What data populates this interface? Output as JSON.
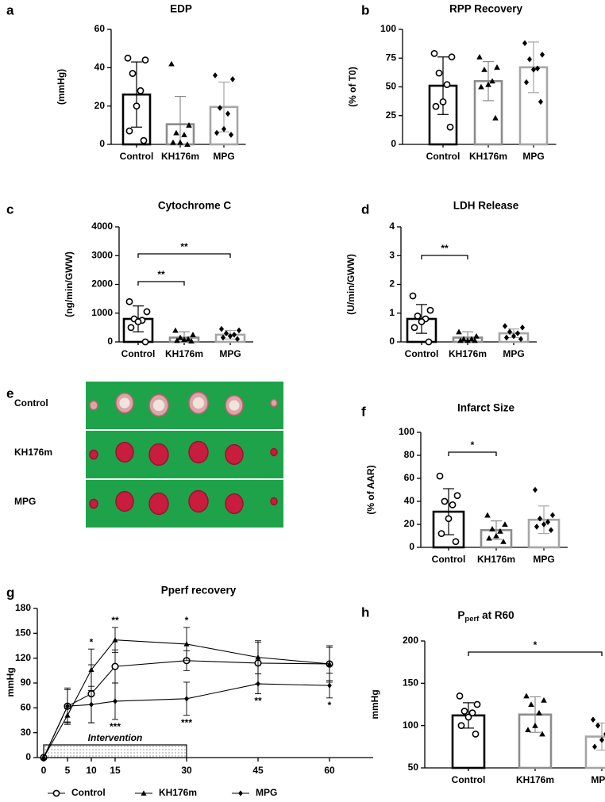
{
  "chart_data": [
    {
      "type": "bar",
      "panel": "a",
      "title": "EDP",
      "ylabel": "(mmHg)",
      "categories": [
        "Control",
        "KH176m",
        "MPG"
      ],
      "values": [
        26,
        10.5,
        19.5
      ],
      "errors": [
        17,
        14.5,
        13
      ],
      "points": [
        [
          45,
          44,
          37,
          28,
          20,
          7,
          2
        ],
        [
          42,
          10,
          6,
          5,
          1,
          1,
          0
        ],
        [
          36,
          34,
          19,
          16,
          8,
          6,
          5
        ]
      ],
      "colors": [
        "#000000",
        "#8c8c8c",
        "#a6a6a6"
      ],
      "markers": [
        "circle",
        "triangle",
        "diamond"
      ],
      "ylim": [
        0,
        60
      ],
      "yticks": [
        0,
        20,
        40,
        60
      ],
      "comparisons": []
    },
    {
      "type": "bar",
      "panel": "b",
      "title": "RPP Recovery",
      "ylabel": "(% of T0)",
      "categories": [
        "Control",
        "KH176m",
        "MPG"
      ],
      "values": [
        51,
        55,
        67
      ],
      "errors": [
        25,
        17,
        22
      ],
      "points": [
        [
          79,
          76,
          62,
          52,
          37,
          33,
          15
        ],
        [
          76,
          67,
          65,
          55,
          52,
          50,
          23
        ],
        [
          88,
          78,
          74,
          66,
          65,
          54,
          37
        ]
      ],
      "colors": [
        "#000000",
        "#8c8c8c",
        "#a6a6a6"
      ],
      "markers": [
        "circle",
        "triangle",
        "diamond"
      ],
      "ylim": [
        0,
        100
      ],
      "yticks": [
        0,
        25,
        50,
        75,
        100
      ],
      "comparisons": []
    },
    {
      "type": "bar",
      "panel": "c",
      "title": "Cytochrome C",
      "ylabel": "(ng/min/GWW)",
      "categories": [
        "Control",
        "KH176m",
        "MPG"
      ],
      "values": [
        800,
        150,
        250
      ],
      "errors": [
        450,
        200,
        150
      ],
      "points": [
        [
          1400,
          1050,
          800,
          750,
          700,
          500,
          0
        ],
        [
          400,
          250,
          150,
          100,
          80,
          50,
          30
        ],
        [
          450,
          400,
          300,
          250,
          200,
          150,
          100
        ]
      ],
      "colors": [
        "#000000",
        "#8c8c8c",
        "#a6a6a6"
      ],
      "markers": [
        "circle",
        "triangle",
        "diamond"
      ],
      "ylim": [
        0,
        4000
      ],
      "yticks": [
        0,
        1000,
        2000,
        3000,
        4000
      ],
      "comparisons": [
        {
          "from": 0,
          "to": 1,
          "label": "**"
        },
        {
          "from": 0,
          "to": 2,
          "label": "**"
        }
      ]
    },
    {
      "type": "bar",
      "panel": "d",
      "title": "LDH Release",
      "ylabel": "(U/min/GWW)",
      "categories": [
        "Control",
        "KH176m",
        "MPG"
      ],
      "values": [
        0.8,
        0.15,
        0.3
      ],
      "errors": [
        0.5,
        0.2,
        0.15
      ],
      "points": [
        [
          1.6,
          1.1,
          0.9,
          0.8,
          0.7,
          0.5,
          0
        ],
        [
          0.35,
          0.2,
          0.1,
          0.1,
          0.05,
          0.05,
          0.05
        ],
        [
          0.55,
          0.5,
          0.35,
          0.3,
          0.2,
          0.15,
          0.1
        ]
      ],
      "colors": [
        "#000000",
        "#8c8c8c",
        "#a6a6a6"
      ],
      "markers": [
        "circle",
        "triangle",
        "diamond"
      ],
      "ylim": [
        0,
        4
      ],
      "yticks": [
        0,
        1,
        2,
        3,
        4
      ],
      "comparisons": [
        {
          "from": 0,
          "to": 1,
          "label": "**"
        }
      ]
    },
    {
      "type": "image",
      "panel": "e",
      "rows": [
        "Control",
        "KH176m",
        "MPG"
      ]
    },
    {
      "type": "bar",
      "panel": "f",
      "title": "Infarct Size",
      "ylabel": "(% of AAR)",
      "categories": [
        "Control",
        "KH176m",
        "MPG"
      ],
      "values": [
        31,
        15,
        24
      ],
      "errors": [
        20,
        8,
        12
      ],
      "points": [
        [
          62,
          45,
          40,
          37,
          25,
          12,
          5
        ],
        [
          28,
          20,
          16,
          14,
          10,
          8,
          5
        ],
        [
          50,
          28,
          25,
          22,
          20,
          18,
          15
        ]
      ],
      "colors": [
        "#000000",
        "#8c8c8c",
        "#a6a6a6"
      ],
      "markers": [
        "circle",
        "triangle",
        "diamond"
      ],
      "ylim": [
        0,
        100
      ],
      "yticks": [
        0,
        20,
        40,
        60,
        80,
        100
      ],
      "comparisons": [
        {
          "from": 0,
          "to": 1,
          "label": "*"
        }
      ]
    },
    {
      "type": "line",
      "panel": "g",
      "title": "Pperf recovery",
      "ylabel": "mmHg",
      "x": [
        0,
        5,
        10,
        15,
        30,
        45,
        60
      ],
      "xlim": [
        0,
        60
      ],
      "xticks": [
        0,
        5,
        10,
        15,
        30,
        45,
        60
      ],
      "ylim": [
        0,
        180
      ],
      "yticks": [
        0,
        30,
        60,
        90,
        120,
        150,
        180
      ],
      "series": [
        {
          "name": "Control",
          "marker": "circle",
          "color": "#000000",
          "values": [
            0,
            62,
            77,
            110,
            117,
            114,
            113
          ],
          "errors": [
            0,
            20,
            35,
            20,
            12,
            25,
            20
          ]
        },
        {
          "name": "KH176m",
          "marker": "triangle",
          "color": "#000000",
          "values": [
            0,
            51,
            106,
            142,
            137,
            121,
            113
          ],
          "errors": [
            0,
            8,
            25,
            15,
            20,
            20,
            22
          ]
        },
        {
          "name": "MPG",
          "marker": "diamond",
          "color": "#000000",
          "values": [
            0,
            62,
            64,
            68,
            71,
            89,
            87
          ],
          "errors": [
            0,
            22,
            22,
            22,
            20,
            12,
            15
          ]
        }
      ],
      "intervention": {
        "label": "Intervention",
        "x": [
          0,
          30
        ]
      },
      "annotations": [
        {
          "series": 1,
          "point": 2,
          "side": "above",
          "label": "*"
        },
        {
          "series": 1,
          "point": 3,
          "side": "above",
          "label": "**"
        },
        {
          "series": 1,
          "point": 4,
          "side": "above",
          "label": "*"
        },
        {
          "series": 2,
          "point": 3,
          "side": "below",
          "label": "***"
        },
        {
          "series": 2,
          "point": 4,
          "side": "below",
          "label": "***"
        },
        {
          "series": 2,
          "point": 5,
          "side": "below",
          "label": "**"
        },
        {
          "series": 2,
          "point": 6,
          "side": "below",
          "label": "*"
        }
      ]
    },
    {
      "type": "bar",
      "panel": "h",
      "title_parts": [
        "P",
        "perf",
        " at R60"
      ],
      "ylabel": "mmHg",
      "categories": [
        "Control",
        "KH176m",
        "MPG"
      ],
      "values": [
        112,
        113,
        87
      ],
      "errors": [
        15,
        21,
        16
      ],
      "points": [
        [
          135,
          125,
          117,
          115,
          110,
          100,
          90
        ],
        [
          135,
          130,
          125,
          115,
          100,
          95,
          90
        ],
        [
          107,
          105,
          100,
          90,
          83,
          75,
          62
        ]
      ],
      "colors": [
        "#000000",
        "#8c8c8c",
        "#a6a6a6"
      ],
      "markers": [
        "circle",
        "triangle",
        "diamond"
      ],
      "ylim": [
        50,
        200
      ],
      "yticks": [
        50,
        100,
        150,
        200
      ],
      "comparisons": [
        {
          "from": 0,
          "to": 2,
          "label": "*"
        }
      ]
    }
  ]
}
